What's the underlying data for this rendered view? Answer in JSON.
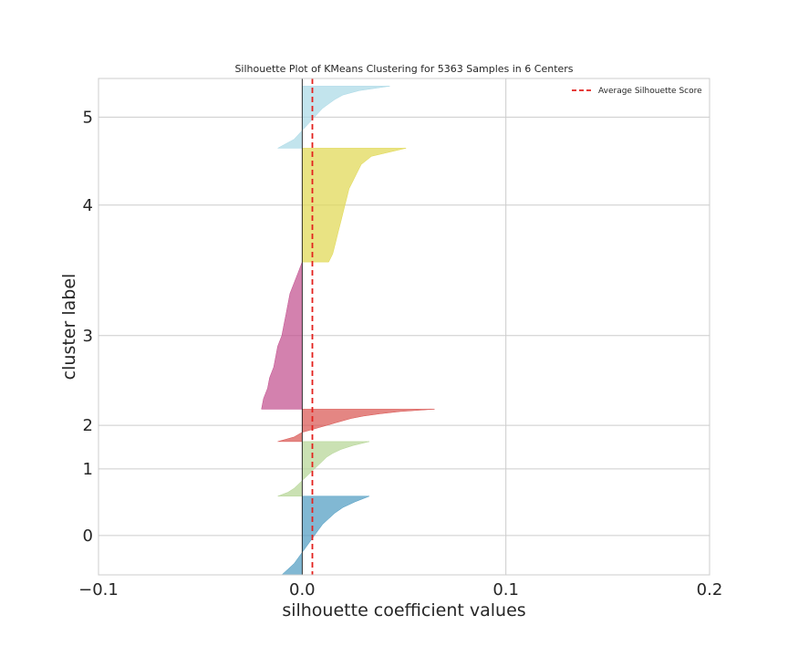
{
  "chart_data": {
    "type": "area",
    "title": "Silhouette Plot of KMeans Clustering for 5363 Samples in 6 Centers",
    "xlabel": "silhouette coefficient values",
    "ylabel": "cluster label",
    "xlim": [
      -0.1,
      0.2
    ],
    "xticks": [
      -0.1,
      0.0,
      0.1,
      0.2
    ],
    "xtick_labels": [
      "−0.1",
      "0.0",
      "0.1",
      "0.2"
    ],
    "ylim": [
      0,
      5363
    ],
    "grid": true,
    "legend": {
      "position": "top-right",
      "entries": [
        "Average Silhouette Score"
      ]
    },
    "average_silhouette_score": 0.005,
    "series": [
      {
        "label": "0",
        "color": "#4b9ac0",
        "y_lower": 0,
        "y_upper": 850,
        "values": [
          -0.01,
          -0.007,
          -0.004,
          -0.002,
          0.0,
          0.002,
          0.004,
          0.006,
          0.008,
          0.01,
          0.013,
          0.016,
          0.02,
          0.026,
          0.033
        ]
      },
      {
        "label": "1",
        "color": "#b3d493",
        "y_lower": 850,
        "y_upper": 1440,
        "values": [
          -0.012,
          -0.007,
          -0.004,
          -0.002,
          0.0,
          0.002,
          0.004,
          0.006,
          0.008,
          0.01,
          0.012,
          0.015,
          0.019,
          0.025,
          0.033
        ]
      },
      {
        "label": "2",
        "color": "#d9524f",
        "y_lower": 1440,
        "y_upper": 1790,
        "values": [
          -0.012,
          -0.008,
          -0.004,
          -0.002,
          0.0,
          0.004,
          0.008,
          0.012,
          0.016,
          0.02,
          0.024,
          0.03,
          0.038,
          0.048,
          0.065
        ]
      },
      {
        "label": "3",
        "color": "#c14b8c",
        "y_lower": 1790,
        "y_upper": 3380,
        "values": [
          -0.02,
          -0.019,
          -0.017,
          -0.016,
          -0.014,
          -0.013,
          -0.012,
          -0.01,
          -0.009,
          -0.008,
          -0.007,
          -0.006,
          -0.004,
          -0.002,
          0.0
        ]
      },
      {
        "label": "4",
        "color": "#dfd74e",
        "y_lower": 3380,
        "y_upper": 4610,
        "values": [
          0.013,
          0.015,
          0.016,
          0.017,
          0.018,
          0.019,
          0.02,
          0.021,
          0.022,
          0.023,
          0.025,
          0.027,
          0.029,
          0.034,
          0.051
        ]
      },
      {
        "label": "5",
        "color": "#a8d8e6",
        "y_lower": 4610,
        "y_upper": 5280,
        "values": [
          -0.012,
          -0.008,
          -0.004,
          -0.002,
          0.0,
          0.002,
          0.004,
          0.006,
          0.008,
          0.01,
          0.013,
          0.016,
          0.02,
          0.028,
          0.043
        ]
      }
    ]
  }
}
